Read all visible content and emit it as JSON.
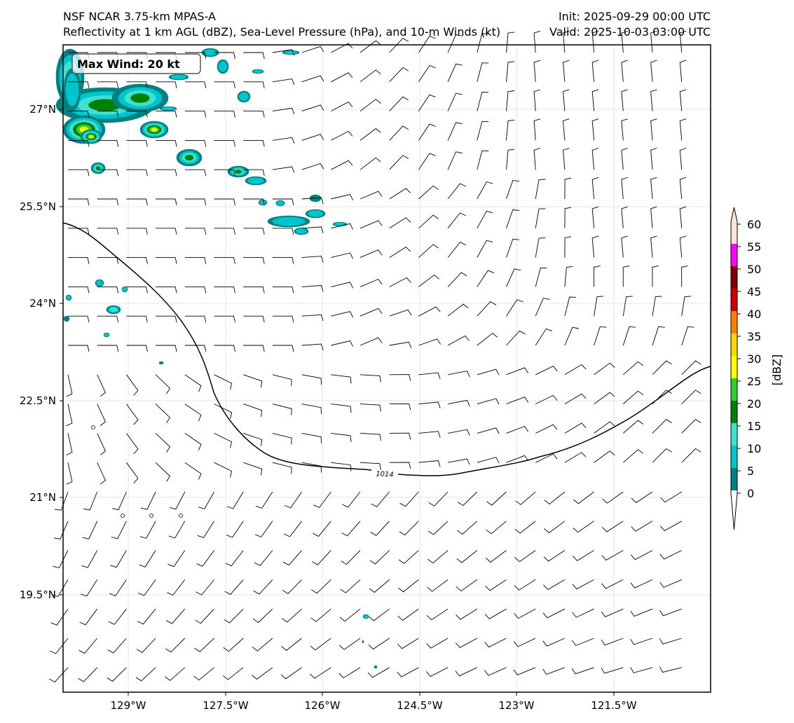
{
  "header": {
    "title_left": "NSF NCAR 3.75-km MPAS-A",
    "subtitle_left": "Reflectivity at 1 km AGL (dBZ), Sea-Level Pressure (hPa), and 10-m Winds (kt)",
    "init": "Init: 2025-09-29 00:00 UTC",
    "valid": "Valid: 2025-10-03 03:00 UTC"
  },
  "annotation": {
    "max_wind": "Max Wind: 20 kt"
  },
  "axes": {
    "lon_ticks": [
      "129°W",
      "127.5°W",
      "126°W",
      "124.5°W",
      "123°W",
      "121.5°W"
    ],
    "lat_ticks": [
      "27°N",
      "25.5°N",
      "24°N",
      "22.5°N",
      "21°N",
      "19.5°N"
    ]
  },
  "contour": {
    "label": "1014"
  },
  "colorbar": {
    "label": "[dBZ]",
    "ticks": [
      "0",
      "5",
      "10",
      "15",
      "20",
      "25",
      "30",
      "35",
      "40",
      "45",
      "50",
      "55",
      "60"
    ],
    "colors": [
      "#008080",
      "#00c5cd",
      "#40e0d0",
      "#008000",
      "#32cd32",
      "#ffff00",
      "#ffd700",
      "#ff8000",
      "#cc0000",
      "#800000",
      "#ff00ff",
      "#fde2d5"
    ]
  }
}
